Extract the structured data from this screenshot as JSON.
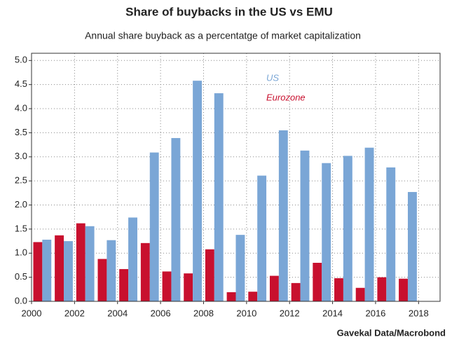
{
  "chart_data": {
    "type": "bar",
    "title": "Share of buybacks in the US vs EMU",
    "subtitle": "Annual share buyback as a percentatge of market capitalization",
    "source": "Gavekal Data/Macrobond",
    "x": [
      2000,
      2001,
      2002,
      2003,
      2004,
      2005,
      2006,
      2007,
      2008,
      2009,
      2010,
      2011,
      2012,
      2013,
      2014,
      2015,
      2016,
      2017
    ],
    "series": [
      {
        "name": "Eurozone",
        "color": "#c8102e",
        "values": [
          1.23,
          1.37,
          1.62,
          0.88,
          0.67,
          1.21,
          0.62,
          0.58,
          1.08,
          0.19,
          0.2,
          0.53,
          0.38,
          0.8,
          0.48,
          0.28,
          0.5,
          0.47
        ]
      },
      {
        "name": "US",
        "color": "#7aa6d6",
        "values": [
          1.28,
          1.25,
          1.56,
          1.27,
          1.74,
          3.09,
          3.39,
          4.58,
          4.32,
          1.38,
          2.61,
          3.55,
          3.13,
          2.87,
          3.02,
          3.19,
          2.78,
          2.27
        ]
      }
    ],
    "xlim": [
      2000,
      2019
    ],
    "xticks": [
      2000,
      2002,
      2004,
      2006,
      2008,
      2010,
      2012,
      2014,
      2016,
      2018
    ],
    "ylim": [
      0,
      5.15
    ],
    "yticks": [
      {
        "value": 0,
        "label": "0.0"
      },
      0.5,
      {
        "value": 1,
        "label": "1.0"
      },
      1.5,
      {
        "value": 2,
        "label": "2.0"
      },
      2.5,
      {
        "value": 3,
        "label": "3.0"
      },
      3.5,
      {
        "value": 4,
        "label": "4.0"
      },
      4.5,
      {
        "value": 5,
        "label": "5.0"
      }
    ],
    "grid": true
  }
}
